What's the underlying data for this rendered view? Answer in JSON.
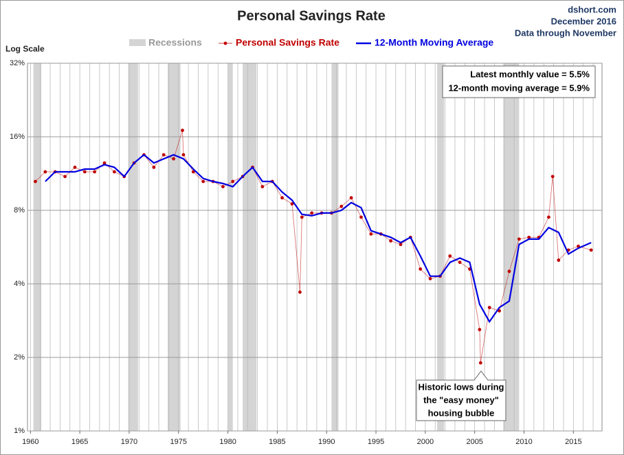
{
  "chart_data": {
    "type": "line",
    "title": "Personal Savings Rate",
    "source": [
      "dshort.com",
      "December 2016",
      "Data through November"
    ],
    "y_axis_label": "Log Scale",
    "log_scale": true,
    "grid": true,
    "xlim": [
      1959.7,
      2017.9
    ],
    "xticks": [
      1960,
      1965,
      1970,
      1975,
      1980,
      1985,
      1990,
      1995,
      2000,
      2005,
      2010,
      2015
    ],
    "ylim": [
      1,
      32
    ],
    "yticks": [
      {
        "value": 1,
        "label": "1%"
      },
      {
        "value": 2,
        "label": "2%"
      },
      {
        "value": 4,
        "label": "4%"
      },
      {
        "value": 8,
        "label": "8%"
      },
      {
        "value": 16,
        "label": "16%"
      },
      {
        "value": 32,
        "label": "32%"
      }
    ],
    "recessions_name": "Recessions",
    "recessions_color": "#d4d4d4",
    "recessions": [
      [
        1960.3,
        1961.1
      ],
      [
        1969.9,
        1970.9
      ],
      [
        1973.9,
        1975.2
      ],
      [
        1980.0,
        1980.5
      ],
      [
        1981.5,
        1982.9
      ],
      [
        1990.5,
        1991.2
      ],
      [
        2001.2,
        2001.9
      ],
      [
        2007.9,
        2009.5
      ]
    ],
    "series": [
      {
        "name": "Personal Savings Rate",
        "color": "#c00000",
        "markers": true,
        "x": [
          1960.5,
          1961.5,
          1962.5,
          1963.5,
          1964.5,
          1965.5,
          1966.5,
          1967.5,
          1968.5,
          1969.5,
          1970.5,
          1971.5,
          1972.5,
          1973.5,
          1974.5,
          1975.4,
          1975.5,
          1976.5,
          1977.5,
          1978.5,
          1979.5,
          1980.5,
          1981.5,
          1982.5,
          1983.5,
          1984.5,
          1985.5,
          1986.5,
          1987.3,
          1987.5,
          1988.5,
          1989.5,
          1990.5,
          1991.5,
          1992.5,
          1993.5,
          1994.5,
          1995.5,
          1996.5,
          1997.5,
          1998.5,
          1999.5,
          2000.5,
          2001.5,
          2002.5,
          2003.5,
          2004.5,
          2005.5,
          2005.6,
          2006.5,
          2007.5,
          2008.5,
          2009.5,
          2010.5,
          2011.5,
          2012.5,
          2012.9,
          2013.5,
          2014.5,
          2015.5,
          2016.8
        ],
        "values": [
          10.5,
          11.5,
          11.5,
          11,
          12,
          11.5,
          11.5,
          12.5,
          11.5,
          11,
          12.5,
          13.5,
          12,
          13.5,
          13,
          17,
          13.5,
          11.5,
          10.5,
          10.5,
          10,
          10.5,
          11,
          12,
          10,
          10.5,
          9,
          8.5,
          3.7,
          7.5,
          7.8,
          7.8,
          7.8,
          8.3,
          9,
          7.5,
          6.4,
          6.4,
          6,
          5.8,
          6.2,
          4.6,
          4.2,
          4.3,
          5.2,
          4.9,
          4.6,
          2.6,
          1.9,
          3.2,
          3.1,
          4.5,
          6.1,
          6.2,
          6.2,
          7.5,
          11,
          5,
          5.5,
          5.7,
          5.5
        ]
      },
      {
        "name": "12-Month Moving Average",
        "color": "#0000e0",
        "markers": false,
        "x": [
          1961.5,
          1962.5,
          1963.5,
          1964.5,
          1965.5,
          1966.5,
          1967.5,
          1968.5,
          1969.5,
          1970.5,
          1971.5,
          1972.5,
          1973.5,
          1974.5,
          1975.5,
          1976.5,
          1977.5,
          1978.5,
          1979.5,
          1980.5,
          1981.5,
          1982.5,
          1983.5,
          1984.5,
          1985.5,
          1986.5,
          1987.5,
          1988.5,
          1989.5,
          1990.5,
          1991.5,
          1992.5,
          1993.5,
          1994.5,
          1995.5,
          1996.5,
          1997.5,
          1998.5,
          1999.5,
          2000.5,
          2001.5,
          2002.5,
          2003.5,
          2004.5,
          2005.5,
          2006.5,
          2007.5,
          2008.5,
          2009.5,
          2010.5,
          2011.5,
          2012.5,
          2013.5,
          2014.5,
          2015.5,
          2016.8
        ],
        "values": [
          10.5,
          11.5,
          11.5,
          11.5,
          11.8,
          11.8,
          12.3,
          12,
          11,
          12.5,
          13.5,
          12.5,
          13,
          13.5,
          13,
          11.8,
          10.8,
          10.5,
          10.3,
          10,
          11,
          12,
          10.5,
          10.5,
          9.5,
          8.8,
          7.7,
          7.6,
          7.8,
          7.8,
          8,
          8.6,
          8.2,
          6.6,
          6.4,
          6.2,
          5.9,
          6.2,
          5.2,
          4.3,
          4.3,
          4.9,
          5.1,
          4.9,
          3.3,
          2.8,
          3.2,
          3.4,
          5.8,
          6.1,
          6.1,
          6.8,
          6.5,
          5.3,
          5.6,
          5.9
        ]
      }
    ],
    "annotations": [
      {
        "lines": [
          "Latest monthly value = 5.5%",
          "12-month moving average = 5.9%"
        ]
      },
      {
        "lines": [
          "Historic lows during",
          "the \"easy money\"",
          "housing bubble"
        ]
      }
    ]
  }
}
